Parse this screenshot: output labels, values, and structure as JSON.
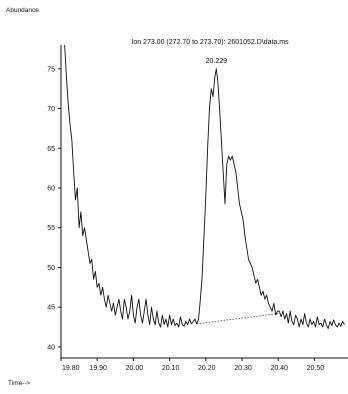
{
  "chart_data": {
    "type": "line",
    "title": "Ion 273.00 (272.70 to 273.70): 2601052.D\\data.ms",
    "ylabel": "Abundance",
    "xlabel": "Time-->",
    "xlim": [
      19.8,
      20.59
    ],
    "ylim": [
      38.6,
      78
    ],
    "x_ticks": [
      19.8,
      19.9,
      20.0,
      20.1,
      20.2,
      20.3,
      20.4,
      20.5
    ],
    "x_tick_labels": [
      "19.80",
      "19.90",
      "20.00",
      "20.10",
      "20.20",
      "20.30",
      "20.40",
      "20.50"
    ],
    "y_ticks": [
      40,
      45,
      50,
      55,
      60,
      65,
      70,
      75
    ],
    "y_tick_labels": [
      "40",
      "45",
      "50",
      "55",
      "60",
      "65",
      "70",
      "75"
    ],
    "grid": false,
    "peak_label": {
      "text": "20.229",
      "x": 20.229,
      "y": 75.0
    },
    "baseline": {
      "x": [
        20.175,
        20.4
      ],
      "y": [
        42.9,
        44.2
      ]
    },
    "series": [
      {
        "x": [
          19.81,
          19.815,
          19.82,
          19.825,
          19.83,
          19.835,
          19.84,
          19.845,
          19.85,
          19.855,
          19.86,
          19.865,
          19.87,
          19.875,
          19.88,
          19.885,
          19.89,
          19.895,
          19.9,
          19.905,
          19.91,
          19.915,
          19.92,
          19.925,
          19.93,
          19.935,
          19.94,
          19.945,
          19.95,
          19.955,
          19.96,
          19.965,
          19.97,
          19.975,
          19.98,
          19.985,
          19.99,
          19.995,
          20.0,
          20.005,
          20.01,
          20.015,
          20.02,
          20.025,
          20.03,
          20.035,
          20.04,
          20.045,
          20.05,
          20.055,
          20.06,
          20.065,
          20.07,
          20.075,
          20.08,
          20.085,
          20.09,
          20.095,
          20.1,
          20.105,
          20.11,
          20.115,
          20.12,
          20.125,
          20.13,
          20.135,
          20.14,
          20.145,
          20.15,
          20.155,
          20.16,
          20.165,
          20.17,
          20.175,
          20.18,
          20.185,
          20.19,
          20.195,
          20.2,
          20.205,
          20.21,
          20.215,
          20.22,
          20.225,
          20.229,
          20.233,
          20.238,
          20.243,
          20.248,
          20.253,
          20.258,
          20.263,
          20.268,
          20.273,
          20.278,
          20.283,
          20.288,
          20.293,
          20.298,
          20.303,
          20.308,
          20.313,
          20.318,
          20.323,
          20.328,
          20.333,
          20.338,
          20.343,
          20.348,
          20.353,
          20.358,
          20.363,
          20.368,
          20.373,
          20.378,
          20.383,
          20.388,
          20.393,
          20.398,
          20.403,
          20.408,
          20.413,
          20.418,
          20.423,
          20.428,
          20.433,
          20.438,
          20.443,
          20.448,
          20.453,
          20.458,
          20.463,
          20.468,
          20.473,
          20.478,
          20.483,
          20.488,
          20.493,
          20.498,
          20.503,
          20.508,
          20.513,
          20.518,
          20.523,
          20.528,
          20.533,
          20.538,
          20.543,
          20.548,
          20.553,
          20.558,
          20.563,
          20.568,
          20.573,
          20.578,
          20.583
        ],
        "y": [
          78.0,
          74.0,
          70.5,
          68.0,
          66.0,
          62.0,
          58.5,
          60.0,
          55.0,
          57.0,
          54.0,
          55.0,
          53.5,
          52.0,
          50.5,
          51.0,
          48.5,
          49.5,
          47.5,
          48.0,
          46.5,
          47.5,
          46.0,
          45.0,
          46.5,
          45.5,
          44.5,
          45.5,
          44.0,
          45.0,
          46.0,
          44.5,
          43.5,
          46.0,
          45.0,
          43.5,
          44.5,
          46.5,
          44.0,
          43.0,
          45.0,
          46.0,
          44.0,
          43.0,
          44.5,
          46.0,
          44.0,
          42.8,
          45.0,
          43.5,
          42.8,
          44.5,
          43.0,
          42.5,
          44.0,
          42.8,
          43.5,
          42.5,
          44.0,
          42.8,
          43.5,
          42.7,
          43.0,
          42.5,
          43.8,
          42.8,
          42.6,
          43.2,
          42.8,
          43.5,
          42.9,
          43.2,
          43.5,
          42.9,
          43.5,
          46.0,
          49.0,
          54.0,
          59.0,
          65.0,
          70.0,
          72.5,
          71.5,
          74.0,
          75.0,
          73.5,
          70.0,
          66.0,
          62.0,
          58.0,
          63.0,
          64.0,
          63.5,
          64.0,
          63.0,
          62.0,
          60.0,
          58.0,
          57.0,
          56.0,
          54.0,
          52.5,
          51.0,
          50.5,
          50.0,
          49.0,
          48.0,
          48.5,
          47.5,
          46.5,
          47.0,
          46.0,
          46.5,
          45.5,
          45.0,
          44.5,
          45.5,
          44.0,
          44.5,
          44.5,
          43.8,
          44.5,
          43.5,
          44.2,
          43.0,
          44.5,
          43.2,
          42.8,
          44.0,
          43.5,
          42.5,
          43.5,
          42.8,
          44.2,
          43.0,
          42.5,
          43.5,
          42.8,
          43.2,
          42.5,
          43.8,
          42.8,
          43.0,
          42.5,
          43.5,
          42.8,
          42.3,
          43.2,
          42.7,
          43.4,
          42.8,
          42.5,
          43.0,
          42.6,
          43.2,
          42.8
        ]
      }
    ]
  }
}
